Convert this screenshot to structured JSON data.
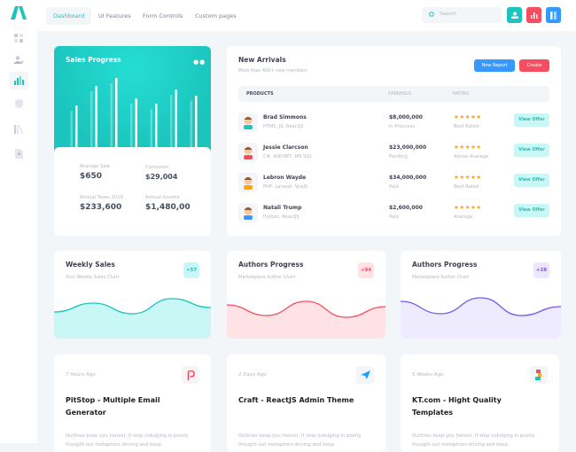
{
  "header": {
    "nav": [
      "Dashboard",
      "UI Features",
      "Form Controls",
      "Custom pages"
    ],
    "search_placeholder": "Search"
  },
  "colors": {
    "teal": "#1bc5bd",
    "red": "#f64e60",
    "blue": "#3699ff",
    "purple": "#8950fc"
  },
  "sales": {
    "title": "Sales Progress",
    "bars": [
      48,
      70,
      79,
      56,
      50,
      66,
      59
    ],
    "stats": [
      {
        "label": "Avarage Sale",
        "value": "$650"
      },
      {
        "label": "Comission",
        "value": "$29,004"
      },
      {
        "label": "Annual Taxes 2019",
        "value": "$233,600"
      },
      {
        "label": "Annual Income",
        "value": "$1,480,00"
      }
    ]
  },
  "arrivals": {
    "title": "New Arrivals",
    "subtitle": "More than 400+ new members",
    "new_report": "New Report",
    "create": "Create",
    "columns": [
      "PRODUCTS",
      "EARNINGS",
      "RATING"
    ],
    "rows": [
      {
        "name": "Brad Simmons",
        "tech": "HTML, JS, ReactJS",
        "earnings": "$8,000,000",
        "status": "In Proccess",
        "stars": "★★★★★",
        "rating": "Best Rated",
        "action": "View Offer",
        "color": "#1bc5bd"
      },
      {
        "name": "Jessie Clarcson",
        "tech": "C#, ASP.NET, MS SQL",
        "earnings": "$23,000,000",
        "status": "Pending",
        "stars": "★★★★★",
        "rating": "Above Avarage",
        "action": "View Offer",
        "color": "#f64e60"
      },
      {
        "name": "Lebron Wayde",
        "tech": "PHP, Laravel, VueJS",
        "earnings": "$34,000,000",
        "status": "Paid",
        "stars": "★★★★★",
        "rating": "Best Rated",
        "action": "View Offer",
        "color": "#ffa800"
      },
      {
        "name": "Natali Trump",
        "tech": "Python, ReactJS",
        "earnings": "$2,600,000",
        "status": "Paid",
        "stars": "★★★★★",
        "rating": "Avarage",
        "action": "View Offer",
        "color": "#3699ff"
      }
    ]
  },
  "mini": [
    {
      "title": "Weekly Sales",
      "subtitle": "Your Weekly Sales Chart",
      "badge": "+57",
      "color": "#1bc5bd",
      "fill": "#c9f7f5",
      "badge_bg": "#c9f7f5",
      "values": [
        30,
        40,
        28,
        45,
        35
      ]
    },
    {
      "title": "Authors Progress",
      "subtitle": "Marketplace Author Chart",
      "badge": "+94",
      "color": "#f64e60",
      "fill": "#ffe2e5",
      "badge_bg": "#ffe2e5",
      "values": [
        38,
        26,
        42,
        24,
        36
      ]
    },
    {
      "title": "Authors Progress",
      "subtitle": "Marketplace Author Chart",
      "badge": "+28",
      "color": "#6f5bf0",
      "fill": "#eeeaff",
      "badge_bg": "#eee5ff",
      "values": [
        42,
        28,
        46,
        26,
        36
      ]
    }
  ],
  "posts": [
    {
      "time": "7 Hours Ago",
      "title": "PitStop - Multiple Email Generator",
      "text": "Outlines keep you honest. If stop indulging in poorly thought-out metaphors driving and keep"
    },
    {
      "time": "2 Days Ago",
      "title": "Craft - ReactJS Admin Theme",
      "text": "Outlines keep you honest. If stop indulging in poorly thought-out metaphors driving and keep"
    },
    {
      "time": "5 Weeks Ago",
      "title": "KT.com - Hight Quality Templates",
      "text": "Outlines keep you honest. If stop indulging in poorly thought-out metaphors driving and keep"
    }
  ]
}
